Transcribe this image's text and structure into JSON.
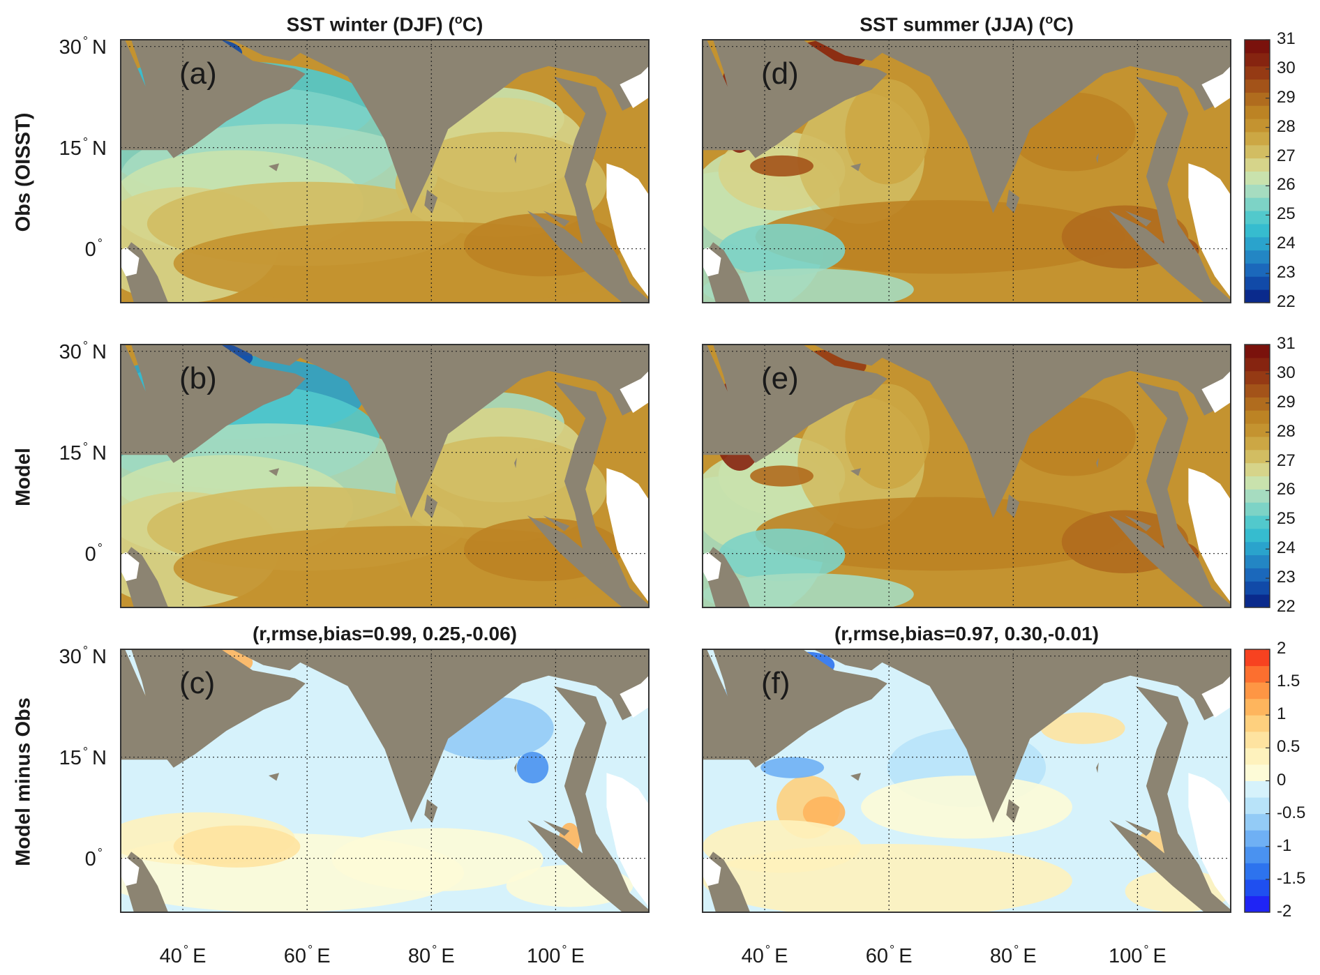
{
  "columns": [
    {
      "title_main": "SST winter (DJF) (",
      "title_sup": "o",
      "title_end": "C)"
    },
    {
      "title_main": "SST summer (JJA) (",
      "title_sup": "o",
      "title_end": "C)"
    }
  ],
  "rows": [
    {
      "label": "Obs (OISST)"
    },
    {
      "label": "Model"
    },
    {
      "label": "Model minus Obs"
    }
  ],
  "panels": [
    {
      "letter": "(a)",
      "stats": ""
    },
    {
      "letter": "(d)",
      "stats": ""
    },
    {
      "letter": "(b)",
      "stats": ""
    },
    {
      "letter": "(e)",
      "stats": ""
    },
    {
      "letter": "(c)",
      "stats": "(r,rmse,bias=0.99, 0.25,-0.06)"
    },
    {
      "letter": "(f)",
      "stats": "(r,rmse,bias=0.97, 0.30,-0.01)"
    }
  ],
  "lat_ticks": [
    {
      "value": 30,
      "label": "30",
      "hemi": "N"
    },
    {
      "value": 15,
      "label": "15",
      "hemi": "N"
    },
    {
      "value": 0,
      "label": "0",
      "hemi": ""
    }
  ],
  "lon_ticks": [
    {
      "value": 40,
      "label": "40",
      "hemi": "E"
    },
    {
      "value": 60,
      "label": "60",
      "hemi": "E"
    },
    {
      "value": 80,
      "label": "80",
      "hemi": "E"
    },
    {
      "value": 100,
      "label": "100",
      "hemi": "E"
    }
  ],
  "map_extent": {
    "lon": [
      30,
      115
    ],
    "lat": [
      -8,
      31
    ]
  },
  "sst_colorbar": {
    "range": [
      22,
      31
    ],
    "ticks": [
      "31",
      "30",
      "29",
      "28",
      "27",
      "26",
      "25",
      "24",
      "23",
      "22"
    ],
    "colors": [
      "#0a2a8c",
      "#114aa8",
      "#1b68bb",
      "#2386c4",
      "#2aa3cc",
      "#36bccf",
      "#52c9cc",
      "#7dd3c6",
      "#a6dcc0",
      "#c9e2ad",
      "#d6d48a",
      "#d2bd62",
      "#cca744",
      "#c49330",
      "#bc8324",
      "#b06c1e",
      "#a35319",
      "#953a14",
      "#862410",
      "#7a120c"
    ]
  },
  "diff_colorbar": {
    "range": [
      -2,
      2
    ],
    "ticks": [
      "2",
      "1.5",
      "1",
      "0.5",
      "0",
      "-0.5",
      "-1",
      "-1.5",
      "-2"
    ],
    "colors": [
      "#1f24f5",
      "#1f4ff0",
      "#2d73ee",
      "#4a92f0",
      "#6fb0f4",
      "#93cbf6",
      "#b8e3f9",
      "#d6f2fb",
      "#fdfbd7",
      "#fef2bd",
      "#fee3a0",
      "#fed07e",
      "#feb55d",
      "#fe9644",
      "#fc6f2f",
      "#f74220"
    ]
  },
  "colors": {
    "land": "#8c8472",
    "white_land": "#ffffff",
    "frame": "#333333"
  }
}
